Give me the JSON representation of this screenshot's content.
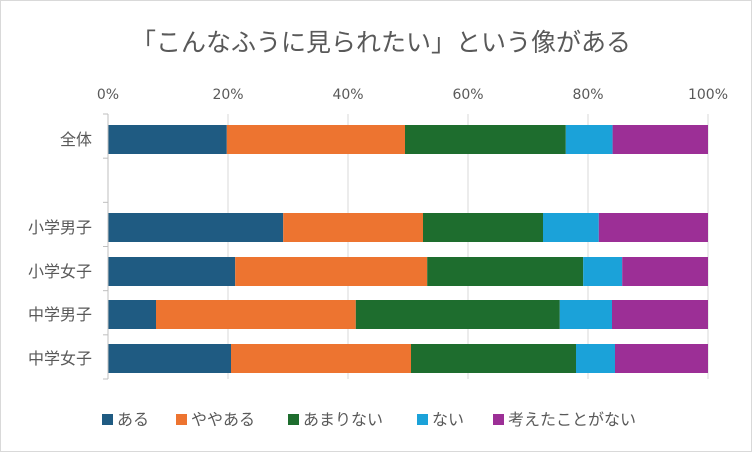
{
  "chart_data": {
    "type": "bar",
    "orientation": "horizontal",
    "stacked": "percent",
    "title": "「こんなふうに見られたい」という像がある",
    "xlabel": "",
    "ylabel": "",
    "xlim": [
      0,
      100
    ],
    "x_ticks": [
      "0%",
      "20%",
      "40%",
      "60%",
      "80%",
      "100%"
    ],
    "grid": true,
    "legend_position": "bottom",
    "categories": [
      "全体",
      "",
      "小学男子",
      "小学女子",
      "中学男子",
      "中学女子"
    ],
    "series": [
      {
        "name": "ある",
        "color": "#1f5b82",
        "values": [
          19.8,
          null,
          29.2,
          21.2,
          8.0,
          20.5
        ]
      },
      {
        "name": "ややある",
        "color": "#ed7430",
        "values": [
          29.7,
          null,
          23.3,
          32.0,
          33.3,
          30.0
        ]
      },
      {
        "name": "あまりない",
        "color": "#1e6d2e",
        "values": [
          26.8,
          null,
          20.0,
          26.0,
          34.0,
          27.5
        ]
      },
      {
        "name": "ない",
        "color": "#1ba2d9",
        "values": [
          7.8,
          null,
          9.3,
          6.5,
          8.7,
          6.5
        ]
      },
      {
        "name": "考えたことがない",
        "color": "#9c2f96",
        "values": [
          15.9,
          null,
          18.2,
          14.3,
          16.0,
          15.5
        ]
      }
    ]
  }
}
